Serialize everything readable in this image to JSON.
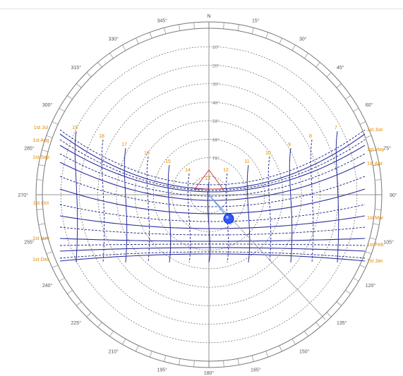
{
  "north_label": "N",
  "bottom_label": "180°",
  "azimuth_labels": [
    {
      "deg": 15,
      "text": "15°"
    },
    {
      "deg": 30,
      "text": "30°"
    },
    {
      "deg": 45,
      "text": "45°"
    },
    {
      "deg": 60,
      "text": "60°"
    },
    {
      "deg": 75,
      "text": "75°"
    },
    {
      "deg": 90,
      "text": "90°"
    },
    {
      "deg": 105,
      "text": "105°"
    },
    {
      "deg": 120,
      "text": "120°"
    },
    {
      "deg": 135,
      "text": "135°"
    },
    {
      "deg": 150,
      "text": "150°"
    },
    {
      "deg": 165,
      "text": "165°"
    },
    {
      "deg": 195,
      "text": "195°"
    },
    {
      "deg": 210,
      "text": "210°"
    },
    {
      "deg": 225,
      "text": "225°"
    },
    {
      "deg": 240,
      "text": "240°"
    },
    {
      "deg": 255,
      "text": "255°"
    },
    {
      "deg": 270,
      "text": "270°"
    },
    {
      "deg": 285,
      "text": "285°"
    },
    {
      "deg": 300,
      "text": "300°"
    },
    {
      "deg": 315,
      "text": "315°"
    },
    {
      "deg": 330,
      "text": "330°"
    },
    {
      "deg": 345,
      "text": "345°"
    }
  ],
  "altitude_labels": [
    "10°",
    "20°",
    "30°",
    "40°",
    "50°",
    "60°",
    "70°"
  ],
  "date_labels_right": [
    "1st Jun",
    "1st May",
    "1st Apr",
    "1st Mar",
    "1st Feb",
    "1st Jan"
  ],
  "date_labels_left": [
    "1st Jul",
    "1st Aug",
    "1st Sep",
    "1st Oct",
    "1st Nov",
    "1st Dec"
  ],
  "hour_labels": [
    "19",
    "18",
    "17",
    "16",
    "15",
    "14",
    "13",
    "12",
    "11",
    "10",
    "9",
    "8",
    "7"
  ],
  "colors": {
    "path_solid": "#2a2f9c",
    "path_dashed": "#1a1f7a",
    "date_text": "#e08a00",
    "grid": "#666666",
    "sun": "#3355ff",
    "marker": "#cc3333",
    "shadow_line": "#999999"
  }
}
